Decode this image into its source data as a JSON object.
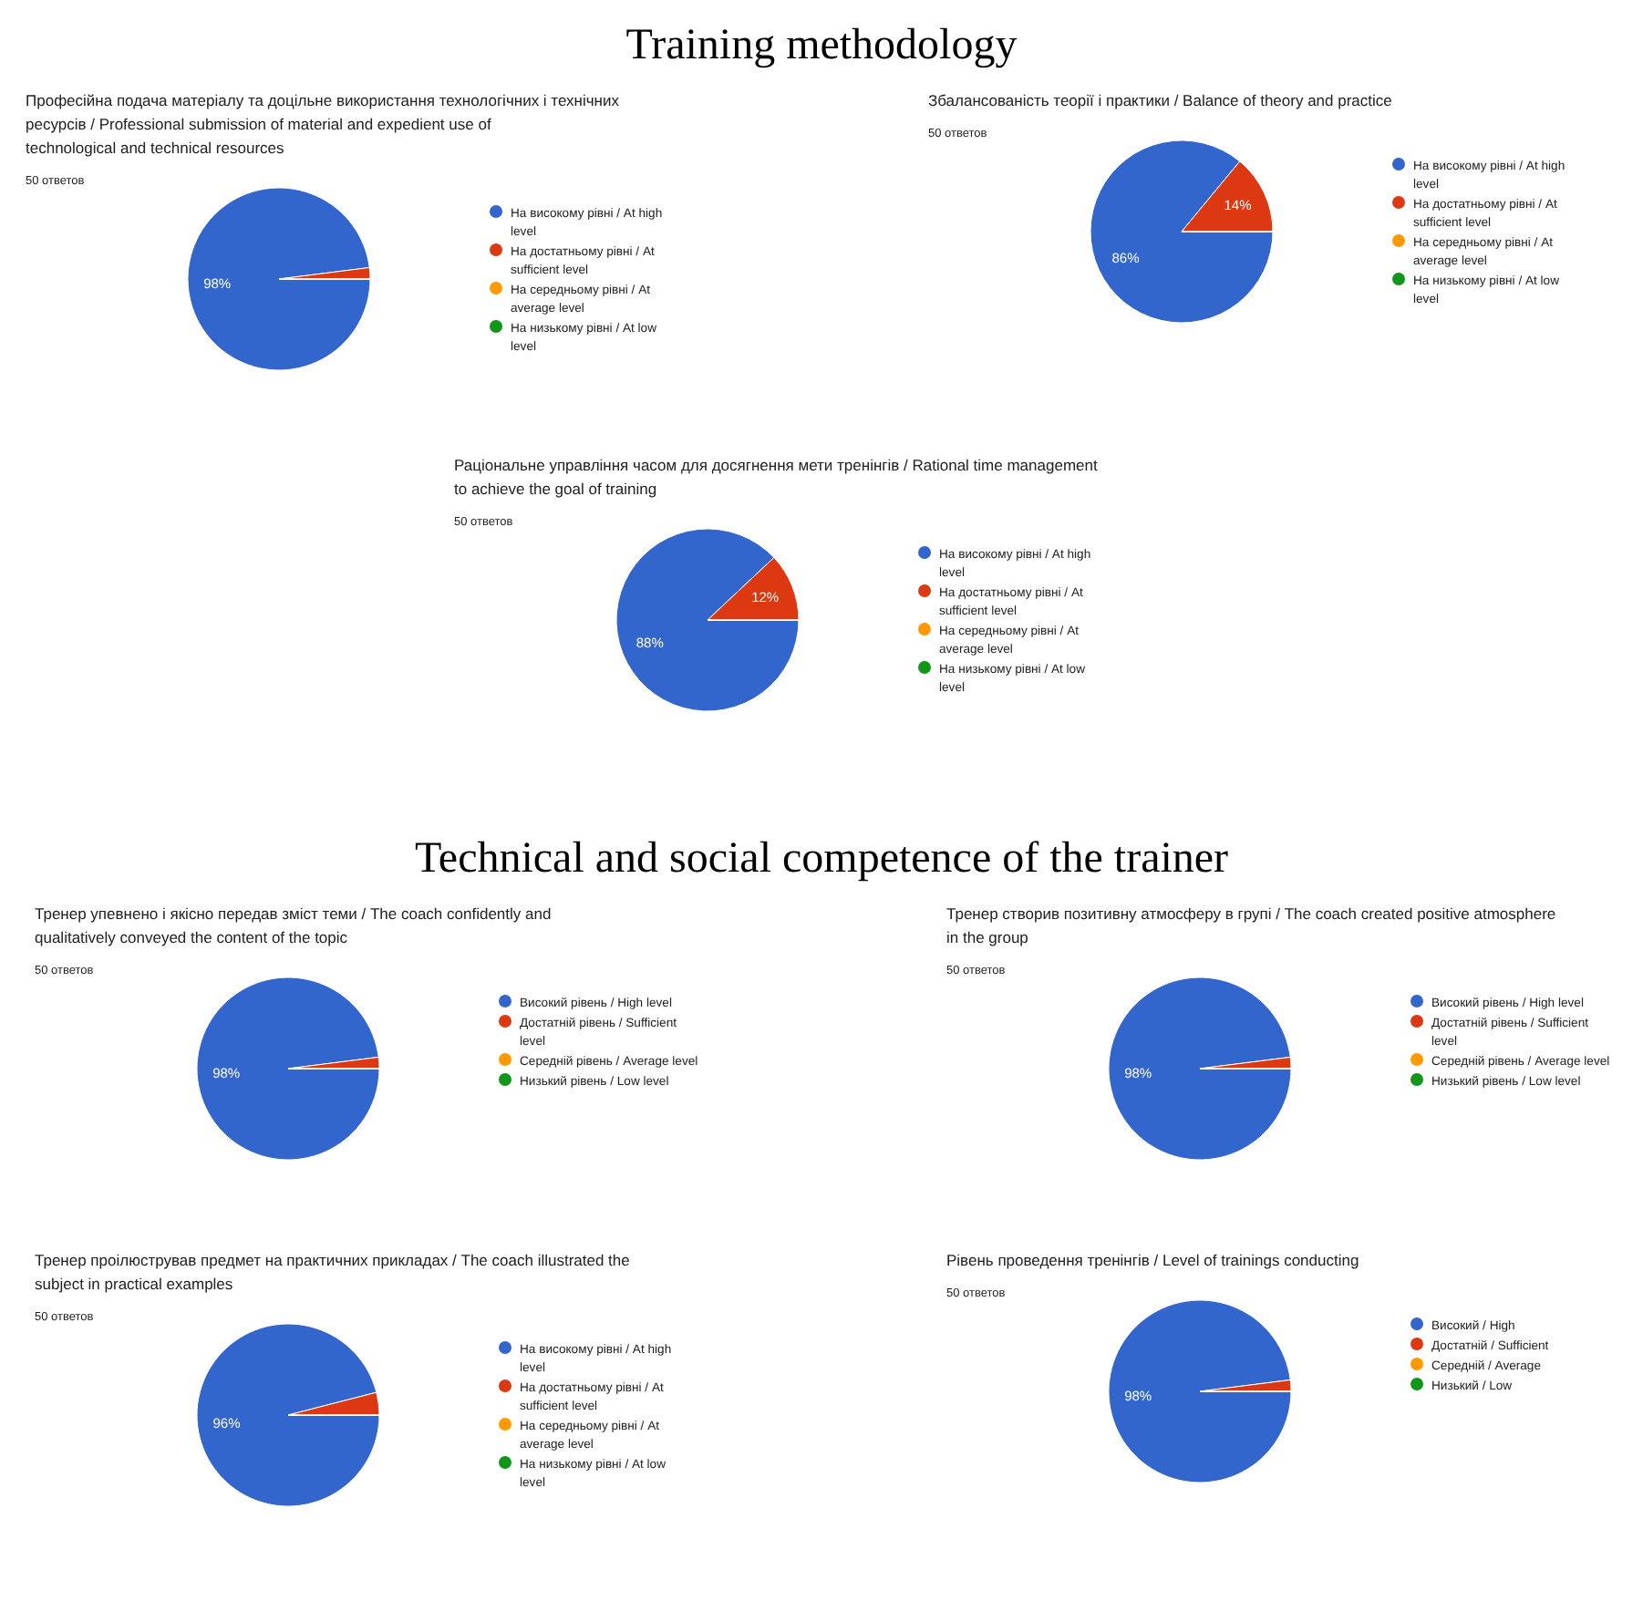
{
  "chart_data": [
    {
      "type": "pie",
      "title": "Професійна подача матеріалу та доцільне використання технологічних і технічних ресурсів / Professional submission of material and expedient use of technological and technical resources",
      "subtitle": "50 ответов",
      "annotations": [
        "Training methodology"
      ],
      "categories": [
        "На високому рівні / At high level",
        "На достатньому рівні / At sufficient level",
        "На середньому рівні / At average level",
        "На низькому рівні / At low level"
      ],
      "values": [
        98,
        2,
        0,
        0
      ],
      "value_labels": [
        "98%",
        null,
        null,
        null
      ],
      "colors": [
        "#3366cc",
        "#dc3912",
        "#ff9900",
        "#109618"
      ],
      "legend": "right"
    },
    {
      "type": "pie",
      "title": "Збалансованість теорії і практики / Balance of theory and practice",
      "subtitle": "50 ответов",
      "categories": [
        "На високому рівні / At high level",
        "На достатньому рівні / At sufficient level",
        "На середньому рівні / At average level",
        "На низькому рівні / At low level"
      ],
      "values": [
        86,
        14,
        0,
        0
      ],
      "value_labels": [
        "86%",
        "14%",
        null,
        null
      ],
      "colors": [
        "#3366cc",
        "#dc3912",
        "#ff9900",
        "#109618"
      ],
      "legend": "right"
    },
    {
      "type": "pie",
      "title": "Раціональне управління часом для досягнення мети тренінгів / Rational time management to achieve the goal of training",
      "subtitle": "50 ответов",
      "categories": [
        "На високому рівні / At high level",
        "На достатньому рівні / At sufficient level",
        "На середньому рівні / At average level",
        "На низькому рівні / At low level"
      ],
      "values": [
        88,
        12,
        0,
        0
      ],
      "value_labels": [
        "88%",
        "12%",
        null,
        null
      ],
      "colors": [
        "#3366cc",
        "#dc3912",
        "#ff9900",
        "#109618"
      ],
      "legend": "right"
    },
    {
      "type": "pie",
      "title": "Тренер упевнено і якісно передав зміст теми / The coach confidently and qualitatively conveyed the content of the topic",
      "subtitle": "50 ответов",
      "annotations": [
        "Technical and social competence of the trainer"
      ],
      "categories": [
        "Високий рівень / High level",
        "Достатній рівень / Sufficient level",
        "Середній рівень / Average level",
        "Низький рівень / Low level"
      ],
      "values": [
        98,
        2,
        0,
        0
      ],
      "value_labels": [
        "98%",
        null,
        null,
        null
      ],
      "colors": [
        "#3366cc",
        "#dc3912",
        "#ff9900",
        "#109618"
      ],
      "legend": "right"
    },
    {
      "type": "pie",
      "title": "Тренер створив позитивну атмосферу в групі / The coach created positive atmosphere in the group",
      "subtitle": "50 ответов",
      "categories": [
        "Високий рівень / High level",
        "Достатній рівень / Sufficient level",
        "Середній рівень / Average level",
        "Низький рівень / Low level"
      ],
      "values": [
        98,
        2,
        0,
        0
      ],
      "value_labels": [
        "98%",
        null,
        null,
        null
      ],
      "colors": [
        "#3366cc",
        "#dc3912",
        "#ff9900",
        "#109618"
      ],
      "legend": "right"
    },
    {
      "type": "pie",
      "title": "Тренер проілюстрував предмет на практичних прикладах / The coach illustrated the subject in practical examples",
      "subtitle": "50 ответов",
      "categories": [
        "На високому рівні / At high level",
        "На достатньому рівні / At sufficient level",
        "На середньому рівні / At average level",
        "На низькому рівні / At low level"
      ],
      "values": [
        96,
        4,
        0,
        0
      ],
      "value_labels": [
        "96%",
        null,
        null,
        null
      ],
      "colors": [
        "#3366cc",
        "#dc3912",
        "#ff9900",
        "#109618"
      ],
      "legend": "right"
    },
    {
      "type": "pie",
      "title": "Рівень проведення тренінгів / Level of trainings conducting",
      "subtitle": "50 ответов",
      "categories": [
        "Високий / High",
        "Достатній / Sufficient",
        "Середній / Average",
        "Низький / Low"
      ],
      "values": [
        98,
        2,
        0,
        0
      ],
      "value_labels": [
        "98%",
        null,
        null,
        null
      ],
      "colors": [
        "#3366cc",
        "#dc3912",
        "#ff9900",
        "#109618"
      ],
      "legend": "right"
    }
  ]
}
